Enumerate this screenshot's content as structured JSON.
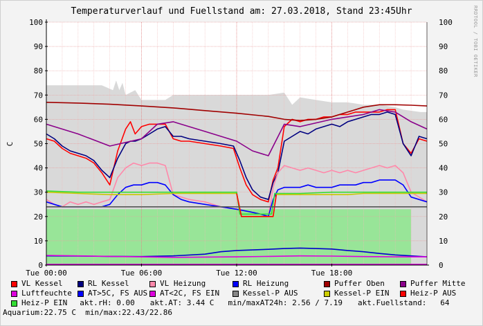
{
  "title": "Temperaturverlauf und Fuellstand am: 27.03.2018, Stand 23:45Uhr",
  "side_tag": "RRDTOOL / TOBI OETIKER",
  "chart_data": {
    "type": "line",
    "ylabel": "C",
    "ylim": [
      0,
      100
    ],
    "yticks": [
      0,
      10,
      20,
      30,
      40,
      50,
      60,
      70,
      80,
      90,
      100
    ],
    "xlim": [
      0,
      24
    ],
    "xticks": [
      {
        "h": 0,
        "label": "Tue 00:00"
      },
      {
        "h": 6,
        "label": "Tue 06:00"
      },
      {
        "h": 12,
        "label": "Tue 12:00"
      },
      {
        "h": 18,
        "label": "Tue 18:00"
      }
    ],
    "areas": [
      {
        "name": "Kessel-P AUS",
        "color": "#d9d9d9",
        "x": [
          0,
          3.5,
          4.2,
          4.4,
          4.6,
          4.8,
          5.0,
          5.6,
          6.0,
          7.5,
          8.0,
          9.0,
          14.0,
          15.0,
          15.5,
          16.0,
          17.0,
          18.0,
          19.0,
          20.0,
          21.0,
          22.0,
          22.5,
          23.6,
          24
        ],
        "y": [
          74,
          74,
          72,
          76,
          72,
          75,
          70,
          72,
          68,
          68,
          70,
          70,
          70,
          71,
          66,
          69,
          68,
          67,
          67,
          66,
          66,
          65,
          64,
          63,
          63
        ]
      },
      {
        "name": "Heiz-P EIN",
        "color": "#98e598",
        "x": [
          0,
          23.0,
          23.0,
          24
        ],
        "y": [
          23,
          23,
          0,
          0
        ]
      }
    ],
    "series": [
      {
        "name": "VL Kessel",
        "color": "#ff0000",
        "x": [
          0,
          0.5,
          1.0,
          1.5,
          2.0,
          2.5,
          3.0,
          3.5,
          4.0,
          4.5,
          5.0,
          5.3,
          5.6,
          6.0,
          6.5,
          7.0,
          7.5,
          8.0,
          8.5,
          9.0,
          10.0,
          11.0,
          11.8,
          12.2,
          12.6,
          13.0,
          13.5,
          14.0,
          14.3,
          14.6,
          15.0,
          15.5,
          16.0,
          16.5,
          17.0,
          17.5,
          18.0,
          18.5,
          19.0,
          19.5,
          20.0,
          20.5,
          21.0,
          21.5,
          22.0,
          22.5,
          23.0,
          23.5,
          24.0
        ],
        "y": [
          52,
          51,
          48,
          46,
          45,
          44,
          42,
          38,
          33,
          47,
          56,
          59,
          54,
          57,
          58,
          58,
          58,
          52,
          51,
          51,
          50,
          49,
          48,
          40,
          33,
          29,
          27,
          26,
          35,
          40,
          57,
          60,
          59,
          60,
          60,
          61,
          61,
          62,
          62,
          63,
          63,
          63,
          63,
          64,
          64,
          50,
          46,
          52,
          51
        ]
      },
      {
        "name": "RL Kessel",
        "color": "#000080",
        "x": [
          0,
          0.5,
          1.0,
          1.5,
          2.0,
          2.5,
          3.0,
          3.5,
          4.0,
          4.5,
          5.0,
          5.3,
          5.6,
          6.0,
          6.5,
          7.0,
          7.5,
          8.0,
          8.5,
          9.0,
          10.0,
          11.0,
          11.8,
          12.2,
          12.6,
          13.0,
          13.5,
          14.0,
          14.3,
          14.6,
          15.0,
          15.5,
          16.0,
          16.5,
          17.0,
          17.5,
          18.0,
          18.5,
          19.0,
          19.5,
          20.0,
          20.5,
          21.0,
          21.5,
          22.0,
          22.5,
          23.0,
          23.5,
          24.0
        ],
        "y": [
          54,
          52,
          49,
          47,
          46,
          45,
          43,
          39,
          36,
          44,
          50,
          51,
          51,
          52,
          54,
          56,
          57,
          53,
          53,
          52,
          51,
          50,
          49,
          43,
          36,
          31,
          28,
          27,
          34,
          38,
          51,
          53,
          55,
          54,
          56,
          57,
          58,
          57,
          59,
          60,
          61,
          62,
          62,
          63,
          62,
          50,
          45,
          53,
          52
        ]
      },
      {
        "name": "VL Heizung",
        "color": "#ff88aa",
        "x": [
          0,
          0.5,
          1.0,
          1.5,
          2.0,
          2.5,
          3.0,
          3.5,
          4.0,
          4.5,
          5.0,
          5.5,
          6.0,
          6.5,
          7.0,
          7.5,
          8.0,
          8.5,
          9.0,
          10.0,
          11.0,
          12.0,
          12.8,
          13.5,
          14.0,
          14.3,
          14.6,
          15.0,
          15.5,
          16.0,
          16.5,
          17.0,
          17.5,
          18.0,
          18.5,
          19.0,
          19.5,
          20.0,
          20.5,
          21.0,
          21.5,
          22.0,
          22.5,
          23.0,
          23.5,
          24.0
        ],
        "y": [
          27,
          25,
          24,
          26,
          25,
          26,
          25,
          26,
          27,
          36,
          40,
          42,
          41,
          42,
          42,
          41,
          29,
          28,
          27,
          26,
          24,
          23,
          22,
          21,
          20,
          32,
          38,
          41,
          40,
          39,
          40,
          39,
          38,
          39,
          38,
          39,
          38,
          39,
          40,
          41,
          40,
          41,
          38,
          30,
          28,
          26
        ]
      },
      {
        "name": "RL Heizung",
        "color": "#0000ff",
        "x": [
          0,
          0.5,
          1.0,
          1.5,
          2.0,
          2.5,
          3.0,
          3.5,
          4.0,
          4.5,
          5.0,
          5.5,
          6.0,
          6.5,
          7.0,
          7.5,
          8.0,
          8.5,
          9.0,
          10.0,
          11.0,
          12.0,
          12.8,
          13.5,
          14.0,
          14.3,
          14.6,
          15.0,
          15.5,
          16.0,
          16.5,
          17.0,
          17.5,
          18.0,
          18.5,
          19.0,
          19.5,
          20.0,
          20.5,
          21.0,
          21.5,
          22.0,
          22.5,
          23.0,
          23.5,
          24.0
        ],
        "y": [
          26,
          25,
          24,
          24,
          24,
          24,
          24,
          24,
          25,
          29,
          32,
          33,
          33,
          34,
          34,
          33,
          29,
          27,
          26,
          25,
          24,
          23,
          22,
          21,
          20,
          27,
          31,
          32,
          32,
          32,
          33,
          32,
          32,
          32,
          33,
          33,
          33,
          34,
          34,
          35,
          35,
          35,
          33,
          28,
          27,
          26
        ]
      },
      {
        "name": "Puffer Oben",
        "color": "#a00000",
        "x": [
          0,
          2,
          4,
          6,
          8,
          10,
          12,
          14,
          15,
          16,
          17,
          18,
          19,
          20,
          21,
          22,
          23,
          24
        ],
        "y": [
          67,
          66.7,
          66.2,
          65.5,
          64.7,
          63.6,
          62.5,
          61.2,
          60.0,
          59.5,
          60.0,
          61.0,
          63.0,
          65.0,
          66.0,
          66.0,
          65.8,
          65.5
        ]
      },
      {
        "name": "Puffer Mitte",
        "color": "#8a008a",
        "x": [
          0,
          2,
          4,
          6,
          7,
          8,
          10,
          12,
          13,
          14,
          15,
          16,
          18,
          20,
          21,
          22,
          23,
          24
        ],
        "y": [
          58,
          54,
          49,
          52,
          58,
          59,
          55,
          51,
          47,
          45,
          58,
          57,
          60,
          62,
          64,
          63,
          59,
          56
        ]
      },
      {
        "name": "Kessel-P EIN",
        "color": "#c8c800",
        "x": [
          0,
          2,
          4,
          6,
          8,
          10,
          12,
          12.3,
          14.3,
          14.5,
          16,
          18,
          19,
          20,
          22,
          24
        ],
        "y": [
          30,
          29.5,
          29,
          29,
          29.5,
          29.5,
          29.5,
          20,
          20,
          29,
          29,
          29,
          29,
          29.5,
          29.5,
          29.5
        ]
      },
      {
        "name": "Heiz-P EIN",
        "color": "#33dd33",
        "x": [
          0,
          2,
          4,
          6,
          8,
          10,
          12,
          12.2,
          14.2,
          14.4,
          16,
          18,
          20,
          22,
          24
        ],
        "y": [
          30.5,
          30,
          30,
          30,
          30,
          30,
          30,
          21,
          21,
          29.5,
          29.5,
          30,
          30,
          30,
          30
        ]
      },
      {
        "name": "Heiz-P AUS",
        "color": "#ff0000",
        "x": [
          12.0,
          12.3,
          14.3,
          14.5
        ],
        "y": [
          29.5,
          20,
          20,
          29
        ]
      },
      {
        "name": "Kessel-P AUS",
        "color": "#555555",
        "x": [
          0,
          2,
          4,
          6,
          8,
          10,
          12,
          14,
          16,
          18,
          20,
          22,
          24
        ],
        "y": [
          24,
          24,
          24,
          24,
          24,
          24,
          24,
          24,
          24,
          24,
          24,
          24,
          24
        ]
      },
      {
        "name": "AT>5C, FS AUS",
        "color": "#0000cc",
        "x": [
          0,
          2,
          4,
          6,
          8,
          10,
          11,
          12,
          14,
          15,
          16,
          17,
          18,
          19,
          20,
          21,
          22,
          23,
          24
        ],
        "y": [
          3.8,
          3.7,
          3.6,
          3.5,
          3.8,
          4.5,
          5.5,
          6.0,
          6.5,
          6.8,
          7.0,
          6.8,
          6.6,
          6.0,
          5.5,
          4.8,
          4.2,
          3.8,
          3.4
        ]
      },
      {
        "name": "Luftfeuchte",
        "color": "#dd00dd",
        "x": [
          0,
          2,
          4,
          6,
          8,
          10,
          12,
          14,
          16,
          18,
          20,
          22,
          24
        ],
        "y": [
          4.0,
          3.8,
          3.6,
          3.4,
          3.2,
          3.3,
          3.4,
          3.6,
          3.8,
          3.7,
          3.5,
          3.4,
          3.4
        ]
      },
      {
        "name": "AT<2C, FS EIN",
        "color": "#cc00cc",
        "x": [
          0,
          24
        ],
        "y": [
          0.3,
          0.3
        ]
      }
    ]
  },
  "legend": {
    "rows": [
      [
        {
          "color": "#ff0000",
          "label": "VL Kessel"
        },
        {
          "color": "#000080",
          "label": "RL Kessel"
        },
        {
          "color": "#ff88aa",
          "label": "VL Heizung"
        },
        {
          "color": "#0000ff",
          "label": "RL Heizung"
        },
        {
          "color": "#a00000",
          "label": "Puffer Oben"
        },
        {
          "color": "#8a008a",
          "label": "Puffer Mitte"
        }
      ],
      [
        {
          "color": "#dd00dd",
          "label": "Luftfeuchte"
        },
        {
          "color": "#0000ff",
          "label": "AT>5C, FS AUS"
        },
        {
          "color": "#dd00dd",
          "label": "AT<2C, FS EIN"
        },
        {
          "color": "#888888",
          "label": "Kessel-P AUS"
        },
        {
          "color": "#cccc00",
          "label": "Kessel-P EIN"
        },
        {
          "color": "#ff0000",
          "label": "Heiz-P AUS"
        }
      ]
    ],
    "heizp_label": "Heiz-P EIN",
    "heizp_color": "#33dd33",
    "rh_text": "akt.rH: 0.00",
    "at_text": "akt.AT: 3.44 C",
    "minmax_text": "min/maxAT24h: 2.56 / 7.19",
    "fuell_text": "akt.Fuellstand:   64",
    "aquarium_text": "Aquarium:22.75 C  min/max:22.43/22.86"
  }
}
